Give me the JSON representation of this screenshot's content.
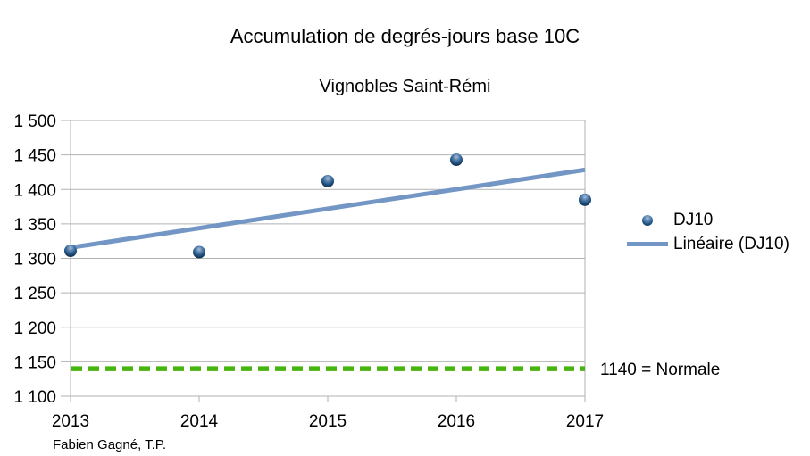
{
  "chart_data": {
    "type": "scatter",
    "title": "Accumulation de degrés-jours base 10C",
    "subtitle": "Vignobles Saint-Rémi",
    "x": [
      2013,
      2014,
      2015,
      2016,
      2017
    ],
    "xtick_labels": [
      "2013",
      "2014",
      "2015",
      "2016",
      "2017"
    ],
    "series": [
      {
        "name": "DJ10",
        "type": "points",
        "values": [
          1311,
          1309,
          1412,
          1443,
          1385
        ]
      },
      {
        "name": "Linéaire (DJ10)",
        "type": "linear-trendline-of-DJ10"
      }
    ],
    "ylim": [
      1100,
      1500
    ],
    "ytick_step": 50,
    "ytick_labels": [
      "1 100",
      "1 150",
      "1 200",
      "1 250",
      "1 300",
      "1 350",
      "1 400",
      "1 450",
      "1 500"
    ],
    "grid": "horizontal",
    "legend_position": "right",
    "reference_line": {
      "value": 1140,
      "label": "1140 = Normale",
      "style": "dashed"
    }
  },
  "legend": {
    "items": [
      {
        "label": "DJ10",
        "marker": "dot"
      },
      {
        "label": "Linéaire (DJ10)",
        "marker": "line"
      }
    ]
  },
  "footer": {
    "credit": "Fabien Gagné, T.P."
  },
  "colors": {
    "point": "#1F4E79",
    "point_highlight": "#ADBDD2",
    "trend": "#7396C5",
    "reference": "#47B50F",
    "grid": "#B2B2B2",
    "text": "#000000",
    "background": "#FFFFFF"
  }
}
